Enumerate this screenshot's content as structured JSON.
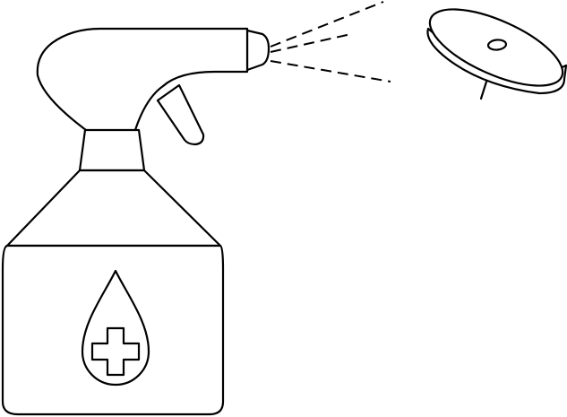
{
  "illustration": {
    "subject": "spray-bottle-with-medical-cross-and-pin-object",
    "colors": {
      "stroke": "#000000",
      "background": "#ffffff"
    },
    "icons": [
      "spray-bottle-icon",
      "water-drop-icon",
      "medical-cross-icon",
      "spray-mist-icon",
      "thumbtack-icon"
    ]
  }
}
